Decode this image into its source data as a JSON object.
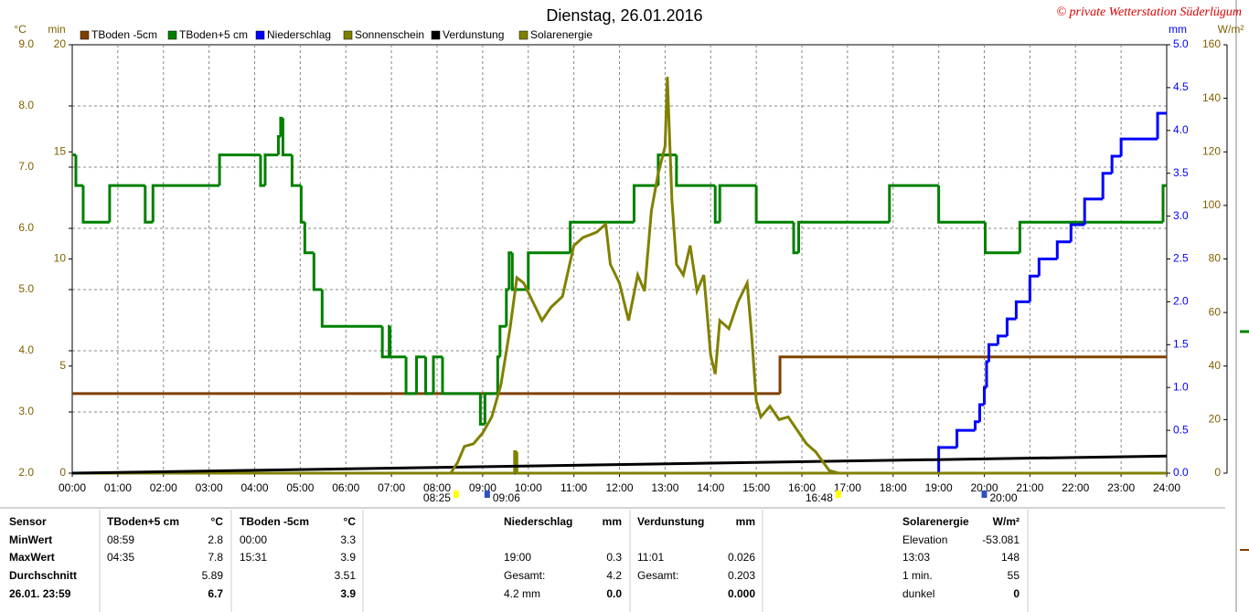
{
  "chart_data": {
    "type": "line",
    "title": "Dienstag, 26.01.2016",
    "credit": "© private Wetterstation Süderlügum",
    "xlim": [
      0,
      24
    ],
    "xticks": [
      {
        "value": 0,
        "label": "00:00"
      },
      {
        "value": 1,
        "label": "01:00"
      },
      {
        "value": 2,
        "label": "02:00"
      },
      {
        "value": 3,
        "label": "03:00"
      },
      {
        "value": 4,
        "label": "04:00"
      },
      {
        "value": 5,
        "label": "05:00"
      },
      {
        "value": 6,
        "label": "06:00"
      },
      {
        "value": 7,
        "label": "07:00"
      },
      {
        "value": 8,
        "label": "08:00"
      },
      {
        "value": 9,
        "label": "09:00"
      },
      {
        "value": 10,
        "label": "10:00"
      },
      {
        "value": 11,
        "label": "11:00"
      },
      {
        "value": 12,
        "label": "12:00"
      },
      {
        "value": 13,
        "label": "13:00"
      },
      {
        "value": 14,
        "label": "14:00"
      },
      {
        "value": 15,
        "label": "15:00"
      },
      {
        "value": 16,
        "label": "16:00"
      },
      {
        "value": 17,
        "label": "17:00"
      },
      {
        "value": 18,
        "label": "18:00"
      },
      {
        "value": 19,
        "label": "19:00"
      },
      {
        "value": 20,
        "label": "20:00"
      },
      {
        "value": 21,
        "label": "21:00"
      },
      {
        "value": 22,
        "label": "22:00"
      },
      {
        "value": 23,
        "label": "23:00"
      },
      {
        "value": 24,
        "label": "24:00"
      }
    ],
    "grid": true,
    "axes": {
      "temp": {
        "label": "°C",
        "color": "#806000",
        "lim": [
          2,
          9
        ],
        "ticks": [
          {
            "value": 2,
            "label": "2.0"
          },
          {
            "value": 3,
            "label": "3.0"
          },
          {
            "value": 4,
            "label": "4.0"
          },
          {
            "value": 5,
            "label": "5.0"
          },
          {
            "value": 6,
            "label": "6.0"
          },
          {
            "value": 7,
            "label": "7.0"
          },
          {
            "value": 8,
            "label": "8.0"
          },
          {
            "value": 9,
            "label": "9.0"
          }
        ]
      },
      "min": {
        "label": "min",
        "color": "#806000",
        "lim": [
          0,
          20
        ],
        "ticks": [
          0,
          5,
          10,
          15,
          20
        ]
      },
      "mm": {
        "label": "mm",
        "color": "#0000ff",
        "lim": [
          0,
          5
        ],
        "ticks": [
          {
            "value": 0,
            "label": "0.0"
          },
          {
            "value": 0.5,
            "label": "0.5"
          },
          {
            "value": 1,
            "label": "1.0"
          },
          {
            "value": 1.5,
            "label": "1.5"
          },
          {
            "value": 2,
            "label": "2.0"
          },
          {
            "value": 2.5,
            "label": "2.5"
          },
          {
            "value": 3,
            "label": "3.0"
          },
          {
            "value": 3.5,
            "label": "3.5"
          },
          {
            "value": 4,
            "label": "4.0"
          },
          {
            "value": 4.5,
            "label": "4.5"
          },
          {
            "value": 5,
            "label": "5.0"
          }
        ]
      },
      "wm2": {
        "label": "W/m²",
        "color": "#806000",
        "lim": [
          0,
          160
        ],
        "ticks": [
          0,
          20,
          40,
          60,
          80,
          100,
          120,
          140,
          160
        ]
      }
    },
    "series": [
      {
        "name": "TBoden -5cm",
        "color": "#804000",
        "axis": "temp",
        "style": "step",
        "x": [
          0,
          15.52,
          24
        ],
        "values": [
          3.3,
          3.9,
          3.9
        ]
      },
      {
        "name": "TBoden+5 cm",
        "color": "#008000",
        "axis": "temp",
        "style": "step",
        "x": [
          0,
          0.08,
          0.24,
          0.82,
          1.6,
          1.77,
          3.23,
          4.13,
          4.23,
          4.52,
          4.57,
          4.62,
          4.82,
          5.02,
          5.1,
          5.3,
          5.48,
          6.8,
          6.95,
          6.97,
          7.32,
          7.55,
          7.75,
          7.92,
          8.12,
          8.95,
          9.05,
          9.33,
          9.38,
          9.52,
          9.58,
          9.65,
          10.0,
          10.92,
          12.32,
          12.85,
          13.25,
          14.1,
          14.2,
          15.0,
          15.82,
          15.93,
          17.92,
          19.0,
          20.02,
          20.78,
          23.92,
          24
        ],
        "values": [
          7.2,
          6.7,
          6.1,
          6.7,
          6.1,
          6.7,
          7.2,
          6.7,
          7.2,
          7.5,
          7.8,
          7.2,
          6.7,
          6.1,
          5.6,
          5.0,
          4.4,
          3.9,
          4.4,
          3.9,
          3.3,
          3.9,
          3.3,
          3.9,
          3.3,
          2.8,
          3.3,
          3.9,
          4.4,
          5.0,
          5.6,
          5.0,
          5.6,
          6.1,
          6.7,
          7.2,
          6.7,
          6.1,
          6.7,
          6.1,
          5.6,
          6.1,
          6.7,
          6.1,
          5.6,
          6.1,
          6.7,
          6.7
        ]
      },
      {
        "name": "Niederschlag",
        "color": "#0000ff",
        "axis": "mm",
        "style": "step",
        "x": [
          0,
          19,
          19.4,
          19.8,
          19.9,
          20,
          20.05,
          20.1,
          20.3,
          20.5,
          20.7,
          21,
          21.2,
          21.6,
          21.9,
          22.2,
          22.6,
          22.8,
          23,
          23.8,
          24
        ],
        "values": [
          0,
          0.3,
          0.5,
          0.6,
          0.8,
          1.0,
          1.3,
          1.5,
          1.6,
          1.8,
          2.0,
          2.3,
          2.5,
          2.7,
          2.9,
          3.2,
          3.5,
          3.7,
          3.9,
          4.2,
          4.2
        ]
      },
      {
        "name": "Sonnenschein",
        "color": "#808000",
        "axis": "min",
        "style": "step",
        "x": [
          0,
          9.7,
          9.75,
          24
        ],
        "values": [
          0,
          1,
          0,
          0
        ]
      },
      {
        "name": "Verdunstung",
        "color": "#000000",
        "axis": "mm",
        "style": "line",
        "x": [
          0,
          24
        ],
        "values": [
          0,
          0.2
        ]
      },
      {
        "name": "Solarenergie",
        "color": "#808000",
        "axis": "wm2",
        "style": "line",
        "x": [
          8.3,
          8.45,
          8.6,
          8.8,
          9.0,
          9.2,
          9.4,
          9.6,
          9.75,
          9.9,
          10.1,
          10.3,
          10.5,
          10.75,
          11.0,
          11.2,
          11.5,
          11.7,
          11.8,
          12.0,
          12.2,
          12.4,
          12.55,
          12.7,
          12.85,
          13.0,
          13.05,
          13.15,
          13.25,
          13.4,
          13.55,
          13.7,
          13.85,
          14.0,
          14.1,
          14.2,
          14.4,
          14.6,
          14.8,
          14.9,
          15.0,
          15.1,
          15.3,
          15.5,
          15.7,
          15.9,
          16.1,
          16.3,
          16.6,
          16.8
        ],
        "values": [
          0,
          4,
          10,
          11,
          15,
          21,
          33,
          54,
          73,
          71,
          64,
          57,
          62,
          66,
          85,
          88,
          90,
          93,
          78,
          71,
          57,
          74,
          68,
          98,
          112,
          122,
          148,
          102,
          78,
          74,
          85,
          68,
          74,
          44,
          37,
          57,
          54,
          64,
          71,
          51,
          27,
          21,
          25,
          20,
          21,
          16,
          11,
          8,
          1,
          0
        ]
      }
    ],
    "annotations": [
      {
        "text": "08:25",
        "x": 8.42,
        "color": "#ffff00"
      },
      {
        "text": "09:06",
        "x": 9.1,
        "color": "#3050c0"
      },
      {
        "text": "16:48",
        "x": 16.8,
        "color": "#ffff00"
      },
      {
        "text": "20:00",
        "x": 20.0,
        "color": "#3050c0"
      }
    ]
  },
  "table": {
    "rows": [
      [
        "Sensor",
        "TBoden+5 cm",
        "°C",
        "TBoden -5cm",
        "°C",
        "Niederschlag",
        "mm",
        "Verdunstung",
        "mm",
        "Solarenergie",
        "W/m²"
      ],
      [
        "MinWert",
        "08:59",
        "2.8",
        "00:00",
        "3.3",
        null,
        null,
        null,
        null,
        "Elevation",
        "-53.081"
      ],
      [
        "MaxWert",
        "04:35",
        "7.8",
        "15:31",
        "3.9",
        "19:00",
        "0.3",
        "11:01",
        "0.026",
        "13:03",
        "148"
      ],
      [
        "Durchschnitt",
        null,
        "5.89",
        null,
        "3.51",
        "Gesamt:",
        "4.2",
        "Gesamt:",
        "0.203",
        "1 min.",
        "55"
      ],
      [
        "26.01. 23:59",
        null,
        "6.7",
        null,
        "3.9",
        "4.2 mm",
        "0.0",
        null,
        "0.000",
        "dunkel",
        "0"
      ]
    ]
  }
}
